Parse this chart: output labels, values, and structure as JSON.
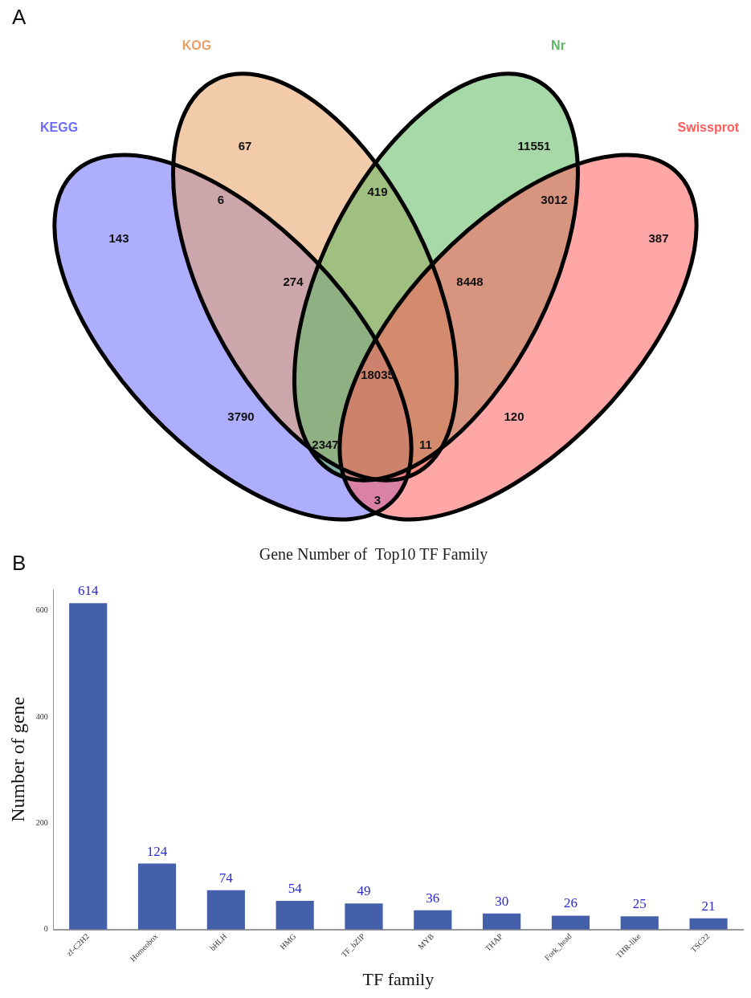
{
  "chart_data": [
    {
      "type": "other",
      "annotations": [
        "A",
        "143",
        "67",
        "11551",
        "387",
        "6",
        "419",
        "3012",
        "274",
        "8448",
        "18035",
        "3790",
        "120",
        "2347",
        "11",
        "3"
      ],
      "series": [
        {
          "name": "KEGG",
          "color": "#6b6bff"
        },
        {
          "name": "KOG",
          "color": "#e8a066"
        },
        {
          "name": "Nr",
          "color": "#5cb860"
        },
        {
          "name": "Swissprot",
          "color": "#ff5c5c"
        }
      ]
    },
    {
      "type": "bar",
      "annotations": [
        "B"
      ],
      "title": "Gene Number of  Top10 TF Family",
      "xlabel": "TF family",
      "ylabel": "Number of gene",
      "categories": [
        "zf-C2H2",
        "Homeobox",
        "bHLH",
        "HMG",
        "TF_bZIP",
        "MYB",
        "THAP",
        "Fork_head",
        "THR-like",
        "TSC22"
      ],
      "values": [
        614,
        124,
        74,
        54,
        49,
        36,
        30,
        26,
        25,
        21
      ],
      "color": "#4560aa",
      "ylim": [
        0,
        640
      ],
      "yticks": [
        0,
        200,
        400,
        600
      ],
      "data_labels": true,
      "grid": false,
      "legend": false
    }
  ]
}
